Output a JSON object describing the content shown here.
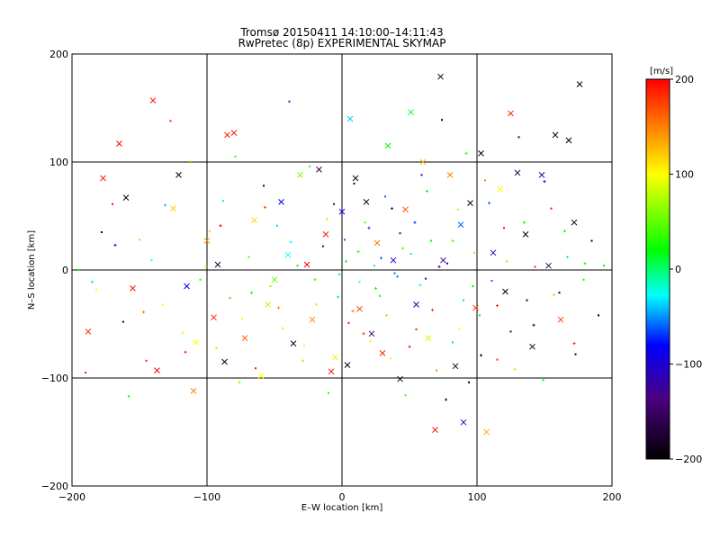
{
  "chart_data": {
    "type": "scatter",
    "title": "Tromsø 20150411 14:10:00–14:11:43",
    "subtitle": "RwPretec (8p) EXPERIMENTAL SKYMAP",
    "xlabel": "E–W location [km]",
    "ylabel": "N–S location [km]",
    "xlim": [
      -200,
      200
    ],
    "ylim": [
      -200,
      200
    ],
    "xticks": [
      -200,
      -100,
      0,
      100,
      200
    ],
    "yticks": [
      -200,
      -100,
      0,
      100,
      200
    ],
    "grid": true,
    "colorbar": {
      "label": "[m/s]",
      "range": [
        -200,
        200
      ],
      "ticks": [
        200,
        100,
        0,
        -100,
        -200
      ],
      "colors": [
        "#000000",
        "#4b0082",
        "#0000ff",
        "#00ffff",
        "#00ff00",
        "#ffff00",
        "#ff0000"
      ]
    },
    "series": [
      {
        "marker": "x",
        "points": [
          [
            -188,
            -57,
            180
          ],
          [
            -177,
            85,
            190
          ],
          [
            -165,
            117,
            200
          ],
          [
            -160,
            67,
            -190
          ],
          [
            -155,
            -17,
            195
          ],
          [
            -140,
            157,
            190
          ],
          [
            -137,
            -93,
            200
          ],
          [
            -125,
            57,
            120
          ],
          [
            -121,
            88,
            -195
          ],
          [
            -115,
            -15,
            -80
          ],
          [
            -110,
            -112,
            150
          ],
          [
            -108,
            -67,
            100
          ],
          [
            -100,
            27,
            140
          ],
          [
            -95,
            -44,
            190
          ],
          [
            -92,
            5,
            -170
          ],
          [
            -87,
            -85,
            -190
          ],
          [
            -85,
            125,
            185
          ],
          [
            -80,
            127,
            190
          ],
          [
            -72,
            -63,
            160
          ],
          [
            -65,
            46,
            120
          ],
          [
            -60,
            -98,
            100
          ],
          [
            -55,
            -32,
            80
          ],
          [
            -50,
            -9,
            50
          ],
          [
            -45,
            63,
            -80
          ],
          [
            -40,
            14,
            -30
          ],
          [
            -36,
            -68,
            -190
          ],
          [
            -31,
            88,
            60
          ],
          [
            -26,
            5,
            200
          ],
          [
            -22,
            -46,
            150
          ],
          [
            -17,
            93,
            -160
          ],
          [
            -12,
            33,
            190
          ],
          [
            -8,
            -94,
            195
          ],
          [
            -5,
            -81,
            110
          ],
          [
            0,
            54,
            -90
          ],
          [
            4,
            -88,
            -195
          ],
          [
            6,
            140,
            -40
          ],
          [
            10,
            85,
            -180
          ],
          [
            13,
            -36,
            175
          ],
          [
            18,
            63,
            -185
          ],
          [
            22,
            -59,
            -150
          ],
          [
            26,
            25,
            150
          ],
          [
            30,
            -77,
            190
          ],
          [
            34,
            115,
            20
          ],
          [
            38,
            9,
            -100
          ],
          [
            43,
            -101,
            -190
          ],
          [
            47,
            56,
            170
          ],
          [
            51,
            146,
            10
          ],
          [
            55,
            -32,
            -120
          ],
          [
            60,
            100,
            130
          ],
          [
            64,
            -63,
            80
          ],
          [
            69,
            -148,
            190
          ],
          [
            73,
            179,
            -200
          ],
          [
            75,
            9,
            -130
          ],
          [
            80,
            88,
            150
          ],
          [
            84,
            -89,
            -180
          ],
          [
            88,
            42,
            -60
          ],
          [
            90,
            -141,
            -110
          ],
          [
            95,
            62,
            -190
          ],
          [
            99,
            -35,
            175
          ],
          [
            103,
            108,
            -195
          ],
          [
            107,
            -150,
            130
          ],
          [
            112,
            16,
            -110
          ],
          [
            117,
            75,
            100
          ],
          [
            121,
            -20,
            -195
          ],
          [
            125,
            145,
            185
          ],
          [
            130,
            90,
            -160
          ],
          [
            136,
            33,
            -200
          ],
          [
            141,
            -71,
            -195
          ],
          [
            148,
            88,
            -130
          ],
          [
            153,
            4,
            -160
          ],
          [
            158,
            125,
            -190
          ],
          [
            162,
            -46,
            175
          ],
          [
            168,
            120,
            -200
          ],
          [
            172,
            44,
            -190
          ],
          [
            176,
            172,
            -200
          ]
        ]
      },
      {
        "marker": "dot",
        "points": [
          [
            -195,
            0,
            20
          ],
          [
            -190,
            -95,
            190
          ],
          [
            -182,
            -18,
            100
          ],
          [
            -178,
            35,
            -190
          ],
          [
            -170,
            61,
            200
          ],
          [
            -162,
            -48,
            -190
          ],
          [
            -158,
            -117,
            20
          ],
          [
            -150,
            28,
            60
          ],
          [
            -145,
            -84,
            190
          ],
          [
            -141,
            9,
            -30
          ],
          [
            -133,
            -32,
            90
          ],
          [
            -127,
            138,
            190
          ],
          [
            -118,
            -58,
            110
          ],
          [
            -112,
            101,
            100
          ],
          [
            -105,
            -9,
            30
          ],
          [
            -98,
            36,
            120
          ],
          [
            -93,
            -72,
            70
          ],
          [
            -88,
            64,
            -10
          ],
          [
            -83,
            -26,
            150
          ],
          [
            -79,
            105,
            30
          ],
          [
            -74,
            -45,
            100
          ],
          [
            -69,
            12,
            40
          ],
          [
            -64,
            -91,
            190
          ],
          [
            -58,
            78,
            -190
          ],
          [
            -53,
            -15,
            60
          ],
          [
            -48,
            41,
            -40
          ],
          [
            -44,
            -54,
            80
          ],
          [
            -39,
            156,
            -120
          ],
          [
            -33,
            4,
            20
          ],
          [
            -28,
            -70,
            110
          ],
          [
            -24,
            96,
            0
          ],
          [
            -19,
            -32,
            70
          ],
          [
            -14,
            22,
            -130
          ],
          [
            -10,
            -114,
            30
          ],
          [
            -6,
            61,
            -140
          ],
          [
            -2,
            -4,
            10
          ],
          [
            2,
            28,
            -60
          ],
          [
            5,
            -49,
            200
          ],
          [
            9,
            80,
            -190
          ],
          [
            13,
            -11,
            -30
          ],
          [
            17,
            44,
            40
          ],
          [
            21,
            -66,
            110
          ],
          [
            24,
            4,
            -20
          ],
          [
            28,
            -24,
            20
          ],
          [
            32,
            68,
            -60
          ],
          [
            36,
            -82,
            90
          ],
          [
            39,
            -3,
            -60
          ],
          [
            43,
            34,
            -110
          ],
          [
            47,
            -116,
            40
          ],
          [
            51,
            15,
            0
          ],
          [
            55,
            -55,
            190
          ],
          [
            59,
            88,
            -100
          ],
          [
            62,
            -8,
            -100
          ],
          [
            66,
            27,
            20
          ],
          [
            70,
            -93,
            150
          ],
          [
            74,
            139,
            -190
          ],
          [
            78,
            6,
            -100
          ],
          [
            82,
            -67,
            -40
          ],
          [
            86,
            56,
            70
          ],
          [
            90,
            -28,
            -40
          ],
          [
            94,
            -104,
            -190
          ],
          [
            98,
            16,
            70
          ],
          [
            102,
            -42,
            20
          ],
          [
            106,
            83,
            150
          ],
          [
            111,
            -10,
            -60
          ],
          [
            115,
            -83,
            180
          ],
          [
            120,
            39,
            190
          ],
          [
            125,
            -57,
            -160
          ],
          [
            131,
            123,
            -200
          ],
          [
            137,
            -28,
            -200
          ],
          [
            143,
            3,
            190
          ],
          [
            149,
            -102,
            20
          ],
          [
            155,
            57,
            200
          ],
          [
            161,
            -21,
            -200
          ],
          [
            167,
            12,
            -40
          ],
          [
            173,
            -78,
            -200
          ],
          [
            179,
            -9,
            20
          ],
          [
            185,
            27,
            -200
          ],
          [
            190,
            -42,
            -200
          ],
          [
            194,
            4,
            20
          ]
        ]
      },
      {
        "marker": "plus",
        "points": [
          [
            -185,
            -11,
            10
          ],
          [
            -168,
            23,
            -80
          ],
          [
            -147,
            -39,
            150
          ],
          [
            -131,
            60,
            -40
          ],
          [
            -116,
            -76,
            190
          ],
          [
            -101,
            3,
            90
          ],
          [
            -90,
            41,
            200
          ],
          [
            -76,
            -104,
            60
          ],
          [
            -67,
            -21,
            20
          ],
          [
            -57,
            58,
            170
          ],
          [
            -47,
            -35,
            150
          ],
          [
            -38,
            26,
            -30
          ],
          [
            -29,
            -84,
            120
          ],
          [
            -20,
            -9,
            40
          ],
          [
            -11,
            47,
            80
          ],
          [
            -3,
            -25,
            0
          ],
          [
            3,
            8,
            10
          ],
          [
            8,
            -38,
            150
          ],
          [
            12,
            17,
            30
          ],
          [
            16,
            -59,
            180
          ],
          [
            20,
            39,
            -70
          ],
          [
            25,
            -17,
            20
          ],
          [
            29,
            11,
            -60
          ],
          [
            33,
            -42,
            120
          ],
          [
            37,
            57,
            -150
          ],
          [
            41,
            -6,
            -50
          ],
          [
            45,
            20,
            50
          ],
          [
            50,
            -71,
            190
          ],
          [
            54,
            44,
            -70
          ],
          [
            58,
            -14,
            -20
          ],
          [
            63,
            73,
            20
          ],
          [
            67,
            -37,
            180
          ],
          [
            72,
            3,
            -100
          ],
          [
            77,
            -120,
            -170
          ],
          [
            82,
            27,
            40
          ],
          [
            87,
            -55,
            100
          ],
          [
            92,
            108,
            30
          ],
          [
            97,
            -15,
            20
          ],
          [
            103,
            -79,
            -170
          ],
          [
            109,
            62,
            -60
          ],
          [
            115,
            -33,
            190
          ],
          [
            122,
            8,
            120
          ],
          [
            128,
            -92,
            80
          ],
          [
            135,
            44,
            20
          ],
          [
            142,
            -51,
            -180
          ],
          [
            150,
            82,
            -80
          ],
          [
            157,
            -23,
            120
          ],
          [
            165,
            36,
            20
          ],
          [
            172,
            -68,
            190
          ],
          [
            180,
            6,
            20
          ]
        ]
      }
    ]
  }
}
